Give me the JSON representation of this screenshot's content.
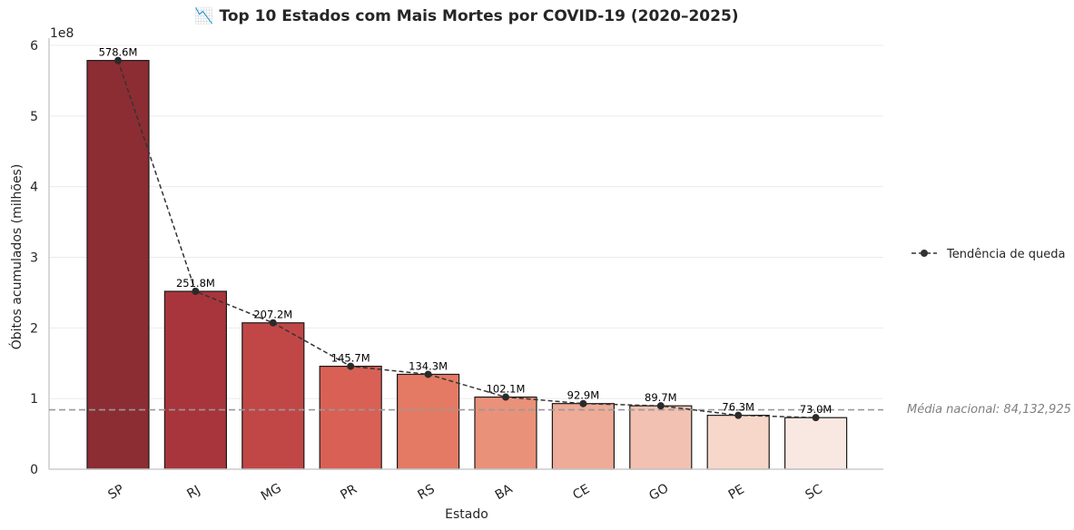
{
  "chart_data": {
    "type": "bar",
    "title": "📉 Top 10 Estados com Mais Mortes por COVID-19 (2020–2025)",
    "xlabel": "Estado",
    "ylabel": "Óbitos acumulados (milhões)",
    "y_scale_label": "1e8",
    "ylim": [
      0,
      600000000
    ],
    "yticks": [
      0,
      100000000,
      200000000,
      300000000,
      400000000,
      500000000,
      600000000
    ],
    "ytick_labels": [
      "0",
      "1",
      "2",
      "3",
      "4",
      "5",
      "6"
    ],
    "grid": "horizontal",
    "categories": [
      "SP",
      "RJ",
      "MG",
      "PR",
      "RS",
      "BA",
      "CE",
      "GO",
      "PE",
      "SC"
    ],
    "values": [
      578600000,
      251800000,
      207200000,
      145700000,
      134300000,
      102100000,
      92900000,
      89700000,
      76300000,
      73000000
    ],
    "data_labels": [
      "578.6M",
      "251.8M",
      "207.2M",
      "145.7M",
      "134.3M",
      "102.1M",
      "92.9M",
      "89.7M",
      "76.3M",
      "73.0M"
    ],
    "bar_colors": [
      "#8c2d33",
      "#a8353b",
      "#c14747",
      "#d96055",
      "#e47a63",
      "#ea917a",
      "#eeab97",
      "#f2c1b1",
      "#f6d7ca",
      "#f9e8e2"
    ],
    "trend_series": {
      "name": "Tendência de queda",
      "values": [
        578600000,
        251800000,
        207200000,
        145700000,
        134300000,
        102100000,
        92900000,
        89700000,
        76300000,
        73000000
      ]
    },
    "reference_line": {
      "value": 84132925,
      "label": "Média nacional: 84,132,925"
    },
    "legend_placement": "center-right"
  }
}
